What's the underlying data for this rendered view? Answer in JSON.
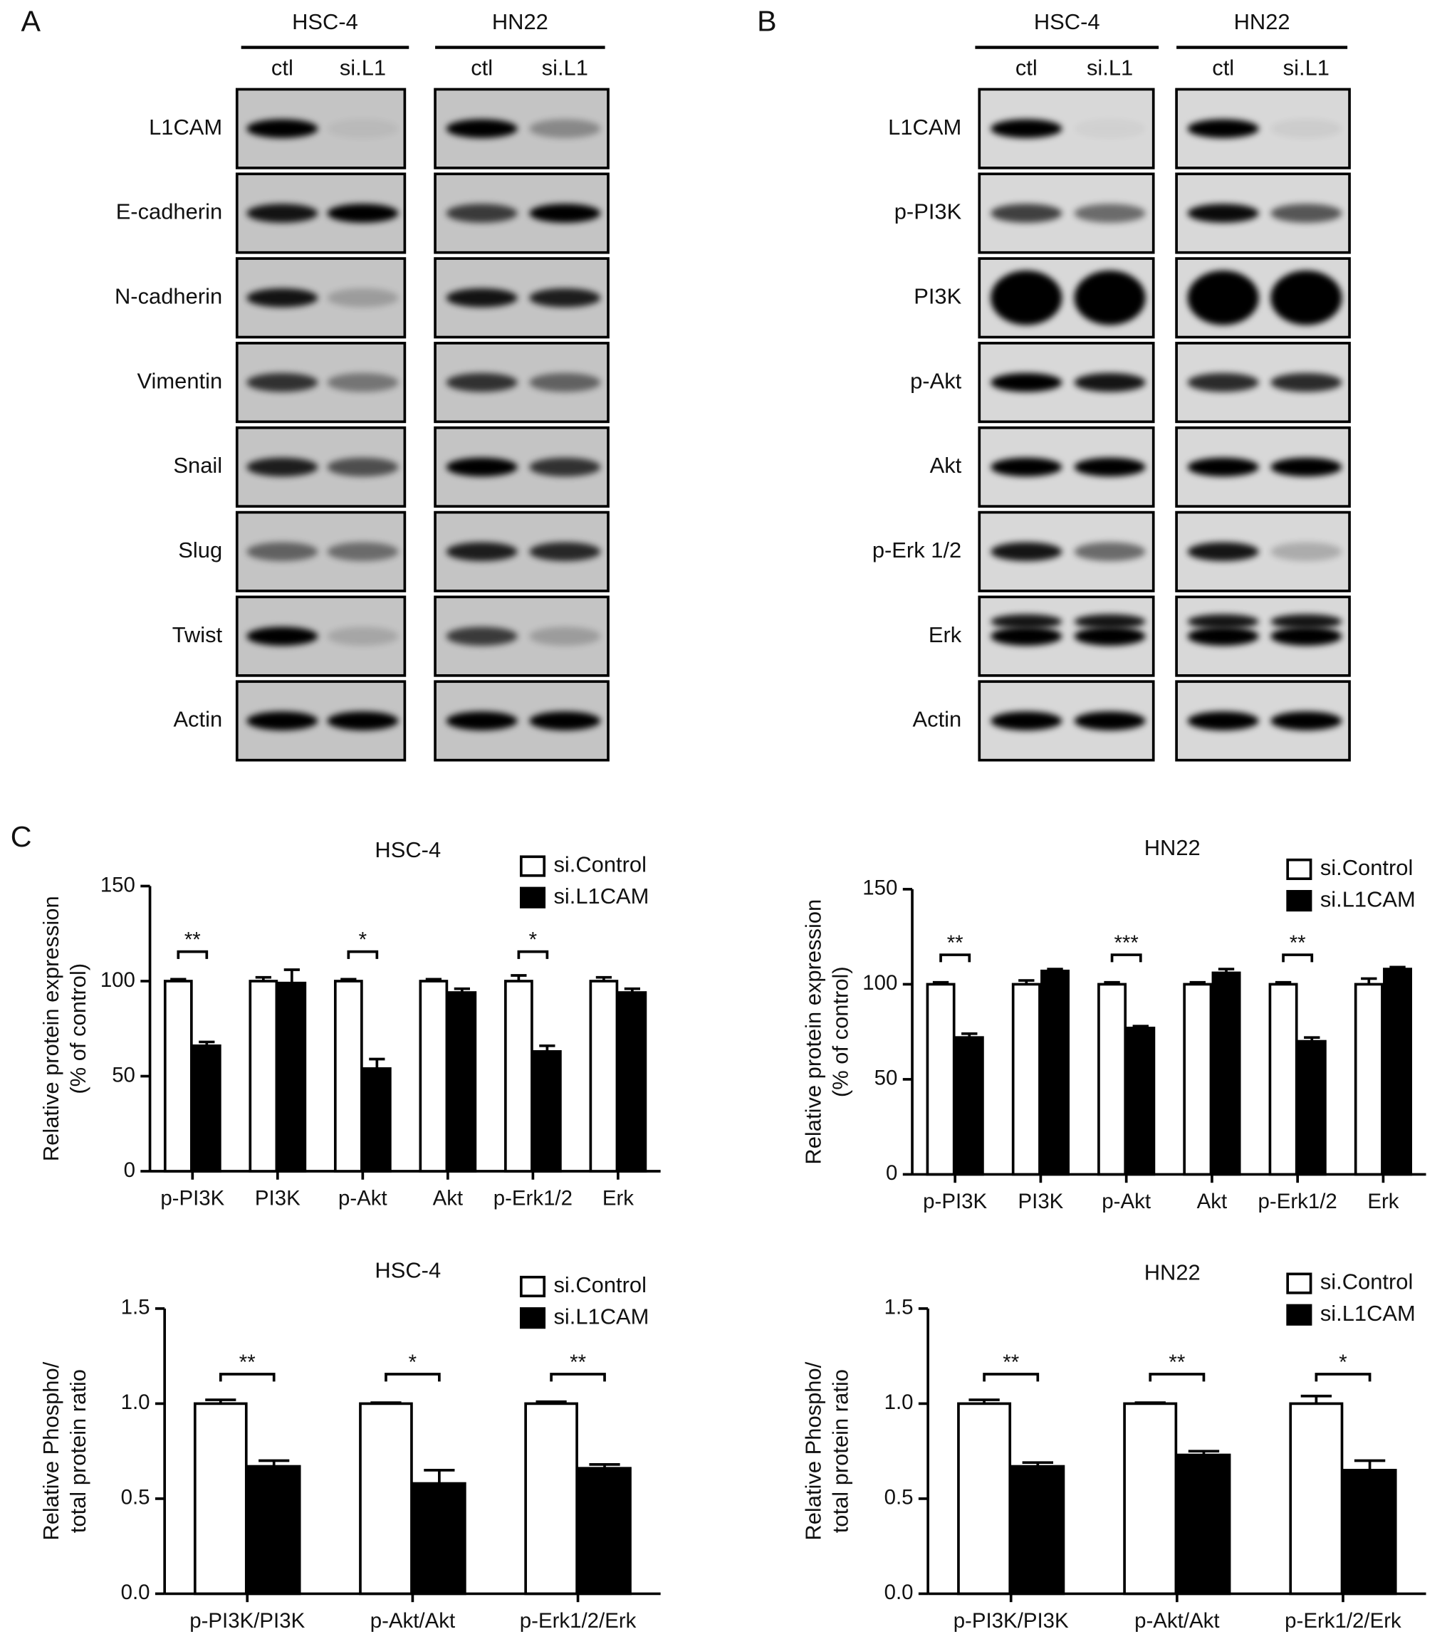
{
  "panel_labels": [
    "A",
    "B",
    "C"
  ],
  "blots": [
    {
      "groups": [
        {
          "name": "HSC-4",
          "lanes": [
            "ctl",
            "si.L1"
          ]
        },
        {
          "name": "HN22",
          "lanes": [
            "ctl",
            "si.L1"
          ]
        }
      ],
      "rows": [
        "L1CAM",
        "E-cadherin",
        "N-cadherin",
        "Vimentin",
        "Snail",
        "Slug",
        "Twist",
        "Actin"
      ]
    },
    {
      "groups": [
        {
          "name": "HSC-4",
          "lanes": [
            "ctl",
            "si.L1"
          ]
        },
        {
          "name": "HN22",
          "lanes": [
            "ctl",
            "si.L1"
          ]
        }
      ],
      "rows": [
        "L1CAM",
        "p-PI3K",
        "PI3K",
        "p-Akt",
        "Akt",
        "p-Erk 1/2",
        "Erk",
        "Actin"
      ]
    }
  ],
  "chart_data": [
    {
      "type": "bar",
      "title": "HSC-4",
      "ylabel": [
        "Relative protein expression",
        "(% of control)"
      ],
      "categories": [
        "p-PI3K",
        "PI3K",
        "p-Akt",
        "Akt",
        "p-Erk1/2",
        "Erk"
      ],
      "series": [
        {
          "name": "si.Control",
          "color": "#ffffff",
          "values": [
            100,
            100,
            100,
            100,
            100,
            100
          ],
          "errors": [
            1,
            2,
            1,
            1,
            3,
            2
          ]
        },
        {
          "name": "si.L1CAM",
          "color": "#000000",
          "values": [
            66,
            99,
            54,
            94,
            63,
            94
          ],
          "errors": [
            2,
            7,
            5,
            2,
            3,
            2
          ]
        }
      ],
      "ylim": [
        0,
        150
      ],
      "yticks": [
        0,
        50,
        100,
        150
      ],
      "legend": "upper right",
      "annotations": [
        {
          "category": "p-PI3K",
          "text": "**"
        },
        {
          "category": "p-Akt",
          "text": "*"
        },
        {
          "category": "p-Erk1/2",
          "text": "*"
        }
      ]
    },
    {
      "type": "bar",
      "title": "HN22",
      "ylabel": [
        "Relative protein expression",
        "(% of control)"
      ],
      "categories": [
        "p-PI3K",
        "PI3K",
        "p-Akt",
        "Akt",
        "p-Erk1/2",
        "Erk"
      ],
      "series": [
        {
          "name": "si.Control",
          "color": "#ffffff",
          "values": [
            100,
            100,
            100,
            100,
            100,
            100
          ],
          "errors": [
            1,
            2,
            1,
            1,
            1,
            3
          ]
        },
        {
          "name": "si.L1CAM",
          "color": "#000000",
          "values": [
            72,
            107,
            77,
            106,
            70,
            108
          ],
          "errors": [
            2,
            1,
            1,
            2,
            2,
            1
          ]
        }
      ],
      "ylim": [
        0,
        150
      ],
      "yticks": [
        0,
        50,
        100,
        150
      ],
      "legend": "upper right",
      "annotations": [
        {
          "category": "p-PI3K",
          "text": "**"
        },
        {
          "category": "p-Akt",
          "text": "***"
        },
        {
          "category": "p-Erk1/2",
          "text": "**"
        }
      ]
    },
    {
      "type": "bar",
      "title": "HSC-4",
      "ylabel": [
        "Relative Phospho/",
        "total protein ratio"
      ],
      "categories": [
        "p-PI3K/PI3K",
        "p-Akt/Akt",
        "p-Erk1/2/Erk"
      ],
      "series": [
        {
          "name": "si.Control",
          "color": "#ffffff",
          "values": [
            1,
            1,
            1
          ],
          "errors": [
            0.02,
            0.005,
            0.01
          ]
        },
        {
          "name": "si.L1CAM",
          "color": "#000000",
          "values": [
            0.67,
            0.58,
            0.66
          ],
          "errors": [
            0.03,
            0.07,
            0.02
          ]
        }
      ],
      "ylim": [
        0,
        1.5
      ],
      "yticks": [
        {
          "value": 0,
          "label": "0.0"
        },
        0.5,
        {
          "value": 1,
          "label": "1.0"
        },
        1.5
      ],
      "legend": "upper right",
      "annotations": [
        {
          "category": "p-PI3K/PI3K",
          "text": "**"
        },
        {
          "category": "p-Akt/Akt",
          "text": "*"
        },
        {
          "category": "p-Erk1/2/Erk",
          "text": "**"
        }
      ]
    },
    {
      "type": "bar",
      "title": "HN22",
      "ylabel": [
        "Relative Phospho/",
        "total protein ratio"
      ],
      "categories": [
        "p-PI3K/PI3K",
        "p-Akt/Akt",
        "p-Erk1/2/Erk"
      ],
      "series": [
        {
          "name": "si.Control",
          "color": "#ffffff",
          "values": [
            1,
            1,
            1
          ],
          "errors": [
            0.02,
            0.005,
            0.04
          ]
        },
        {
          "name": "si.L1CAM",
          "color": "#000000",
          "values": [
            0.67,
            0.73,
            0.65
          ],
          "errors": [
            0.02,
            0.02,
            0.05
          ]
        }
      ],
      "ylim": [
        0,
        1.5
      ],
      "yticks": [
        {
          "value": 0,
          "label": "0.0"
        },
        0.5,
        {
          "value": 1,
          "label": "1.0"
        },
        1.5
      ],
      "legend": "upper right",
      "annotations": [
        {
          "category": "p-PI3K/PI3K",
          "text": "**"
        },
        {
          "category": "p-Akt/Akt",
          "text": "**"
        },
        {
          "category": "p-Erk1/2/Erk",
          "text": "*"
        }
      ]
    }
  ]
}
